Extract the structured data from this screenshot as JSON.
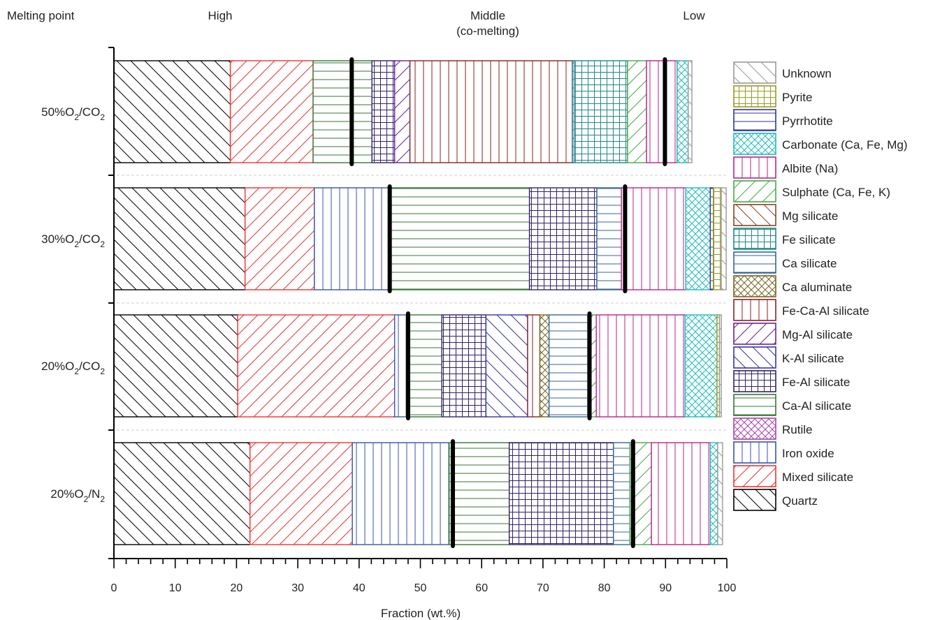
{
  "header": {
    "melting_point": "Melting point",
    "high": "High",
    "middle": "Middle",
    "middle_sub": "(co-melting)",
    "low": "Low"
  },
  "chart_data": {
    "type": "bar",
    "orientation": "horizontal",
    "stacked": true,
    "xlabel": "Fraction (wt.%)",
    "xlim": [
      0,
      100
    ],
    "xticks": [
      0,
      10,
      20,
      30,
      40,
      50,
      60,
      70,
      80,
      90,
      100
    ],
    "categories": [
      {
        "main": "50%O",
        "sub1": "2",
        "mid": "/CO",
        "sub2": "2"
      },
      {
        "main": "30%O",
        "sub1": "2",
        "mid": "/CO",
        "sub2": "2"
      },
      {
        "main": "20%O",
        "sub1": "2",
        "mid": "/CO",
        "sub2": "2"
      },
      {
        "main": "20%O",
        "sub1": "2",
        "mid": "/N",
        "sub2": "2"
      }
    ],
    "series": [
      {
        "name": "Quartz",
        "color": "#000000",
        "pattern": "diag-back",
        "values": [
          19.0,
          21.4,
          20.2,
          22.2
        ]
      },
      {
        "name": "Mixed silicate",
        "color": "#ee3333",
        "pattern": "diag-fwd",
        "values": [
          13.5,
          11.3,
          25.6,
          16.7
        ]
      },
      {
        "name": "Iron oxide",
        "color": "#3355aa",
        "pattern": "vert",
        "values": [
          0,
          12.1,
          1.9,
          15.8
        ]
      },
      {
        "name": "Rutile",
        "color": "#aa44aa",
        "pattern": "cross-diag",
        "values": [
          0,
          0,
          0,
          0
        ]
      },
      {
        "name": "Ca-Al silicate",
        "color": "#337733",
        "pattern": "horiz",
        "values": [
          9.6,
          23.0,
          5.8,
          9.8
        ]
      },
      {
        "name": "Fe-Al silicate",
        "color": "#332266",
        "pattern": "grid",
        "values": [
          3.7,
          11.0,
          7.2,
          17.0
        ]
      },
      {
        "name": "K-Al silicate",
        "color": "#3333aa",
        "pattern": "diag-back",
        "values": [
          0,
          0,
          6.8,
          0
        ]
      },
      {
        "name": "Mg-Al silicate",
        "color": "#662299",
        "pattern": "diag-fwd",
        "values": [
          2.5,
          0,
          0,
          0
        ]
      },
      {
        "name": "Fe-Ca-Al silicate",
        "color": "#882222",
        "pattern": "vert",
        "values": [
          26.5,
          0,
          2.0,
          0
        ]
      },
      {
        "name": "Ca aluminate",
        "color": "#776622",
        "pattern": "cross-diag",
        "values": [
          0,
          0,
          1.5,
          0
        ]
      },
      {
        "name": "Ca silicate",
        "color": "#336699",
        "pattern": "horiz",
        "values": [
          0.3,
          4.0,
          6.3,
          2.7
        ]
      },
      {
        "name": "Fe silicate",
        "color": "#228888",
        "pattern": "grid",
        "values": [
          8.7,
          0,
          0,
          0
        ]
      },
      {
        "name": "Mg silicate",
        "color": "#884422",
        "pattern": "diag-back",
        "values": [
          0,
          0,
          0,
          0
        ]
      },
      {
        "name": "Sulphate (Ca, Fe, K)",
        "color": "#44aa44",
        "pattern": "diag-fwd",
        "values": [
          3.1,
          0,
          1.4,
          3.5
        ]
      },
      {
        "name": "Albite (Na)",
        "color": "#bb2288",
        "pattern": "vert",
        "values": [
          5.0,
          10.5,
          14.5,
          9.6
        ]
      },
      {
        "name": "Carbonate (Ca, Fe, Mg)",
        "color": "#22bbbb",
        "pattern": "cross-diag",
        "values": [
          1.8,
          4.0,
          5.2,
          1.2
        ]
      },
      {
        "name": "Pyrrhotite",
        "color": "#333399",
        "pattern": "horiz",
        "values": [
          0,
          0.5,
          0,
          0
        ]
      },
      {
        "name": "Pyrite",
        "color": "#999922",
        "pattern": "grid",
        "values": [
          0,
          1.3,
          0.4,
          0
        ]
      },
      {
        "name": "Unknown",
        "color": "#999999",
        "pattern": "diag-back",
        "values": [
          0.6,
          0.8,
          0.3,
          0.8
        ]
      }
    ],
    "boundaries": [
      [
        38.8,
        89.9
      ],
      [
        45.0,
        83.4
      ],
      [
        48.0,
        77.6
      ],
      [
        55.3,
        84.7
      ]
    ],
    "legend_order": [
      "Unknown",
      "Pyrite",
      "Pyrrhotite",
      "Carbonate (Ca, Fe, Mg)",
      "Albite (Na)",
      "Sulphate (Ca, Fe, K)",
      "Mg silicate",
      "Fe silicate",
      "Ca silicate",
      "Ca aluminate",
      "Fe-Ca-Al silicate",
      "Mg-Al silicate",
      "K-Al silicate",
      "Fe-Al silicate",
      "Ca-Al silicate",
      "Rutile",
      "Iron oxide",
      "Mixed silicate",
      "Quartz"
    ],
    "legend_position": "right",
    "grid": false
  }
}
